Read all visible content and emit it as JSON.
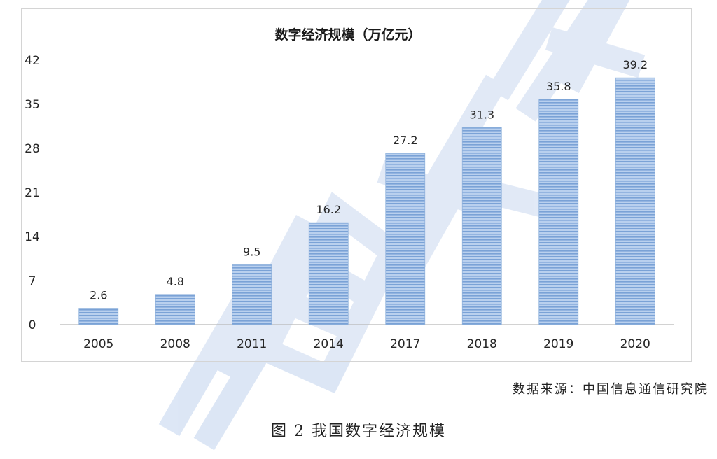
{
  "chart_data": {
    "type": "bar",
    "title": "数字经济规模（万亿元）",
    "categories": [
      "2005",
      "2008",
      "2011",
      "2014",
      "2017",
      "2018",
      "2019",
      "2020"
    ],
    "values": [
      2.6,
      4.8,
      9.5,
      16.2,
      27.2,
      31.3,
      35.8,
      39.2
    ],
    "data_labels": [
      "2.6",
      "4.8",
      "9.5",
      "16.2",
      "27.2",
      "31.3",
      "35.8",
      "39.2"
    ],
    "yticks": [
      0,
      7,
      14,
      21,
      28,
      35,
      42
    ],
    "ylim": [
      0,
      42
    ],
    "grid": false,
    "legend": "none",
    "bar_color": "#a9c4e8",
    "bar_stripe_color": "#6f98cf"
  },
  "source_note": "数据来源：中国信息通信研究院",
  "figure_caption": "图 2  我国数字经济规模",
  "watermark": {
    "text": "中国信息",
    "color": "#8fb0e0"
  }
}
